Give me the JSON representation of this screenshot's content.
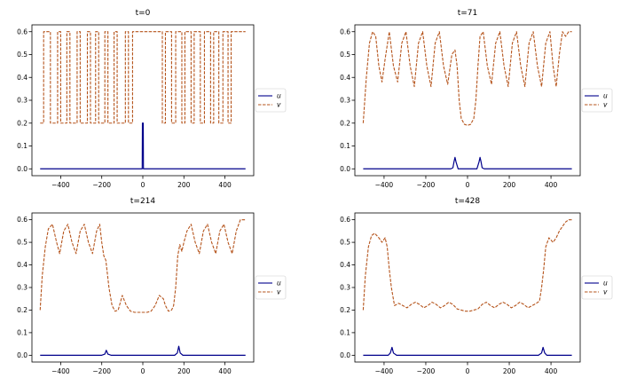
{
  "colors": {
    "u": "#00008b",
    "v": "#b5541c",
    "axis": "#000000"
  },
  "chart_data": [
    {
      "type": "line",
      "title": "t=0",
      "xlabel": "",
      "ylabel": "",
      "xlim": [
        -540,
        540
      ],
      "ylim": [
        -0.03,
        0.63
      ],
      "xticks": [
        -400,
        -200,
        0,
        200,
        400
      ],
      "yticks": [
        0.0,
        0.1,
        0.2,
        0.3,
        0.4,
        0.5,
        0.6
      ],
      "legend": {
        "placement": "right",
        "entries": [
          "u",
          "v"
        ]
      },
      "series": [
        {
          "name": "u",
          "style": "solid",
          "x": [
            -500,
            -3,
            -2,
            0,
            2,
            3,
            500
          ],
          "y": [
            0,
            0,
            0.2,
            0.2,
            0.2,
            0,
            0
          ]
        },
        {
          "name": "v",
          "style": "dashed",
          "x": [
            -500,
            -483,
            -483,
            -450,
            -450,
            -415,
            -415,
            -400,
            -400,
            -370,
            -370,
            -355,
            -355,
            -320,
            -320,
            -305,
            -305,
            -270,
            -270,
            -255,
            -255,
            -230,
            -230,
            -215,
            -215,
            -185,
            -185,
            -170,
            -170,
            -140,
            -140,
            -125,
            -125,
            -85,
            -85,
            -70,
            -70,
            -50,
            -50,
            95,
            95,
            110,
            110,
            140,
            140,
            160,
            160,
            190,
            190,
            205,
            205,
            235,
            235,
            250,
            250,
            280,
            280,
            300,
            300,
            330,
            330,
            345,
            345,
            370,
            370,
            390,
            390,
            415,
            415,
            430,
            430,
            500
          ],
          "y": [
            0.2,
            0.2,
            0.6,
            0.6,
            0.2,
            0.2,
            0.6,
            0.6,
            0.2,
            0.2,
            0.6,
            0.6,
            0.2,
            0.2,
            0.6,
            0.6,
            0.2,
            0.2,
            0.6,
            0.6,
            0.2,
            0.2,
            0.6,
            0.6,
            0.2,
            0.2,
            0.6,
            0.6,
            0.2,
            0.2,
            0.6,
            0.6,
            0.2,
            0.2,
            0.6,
            0.6,
            0.2,
            0.2,
            0.6,
            0.6,
            0.2,
            0.2,
            0.6,
            0.6,
            0.2,
            0.2,
            0.6,
            0.6,
            0.2,
            0.2,
            0.6,
            0.6,
            0.2,
            0.2,
            0.6,
            0.6,
            0.2,
            0.2,
            0.6,
            0.6,
            0.2,
            0.2,
            0.6,
            0.6,
            0.2,
            0.2,
            0.6,
            0.6,
            0.2,
            0.2,
            0.6,
            0.6
          ]
        }
      ]
    },
    {
      "type": "line",
      "title": "t=71",
      "xlabel": "",
      "ylabel": "",
      "xlim": [
        -540,
        540
      ],
      "ylim": [
        -0.03,
        0.63
      ],
      "xticks": [
        -400,
        -200,
        0,
        200,
        400
      ],
      "yticks": [
        0.0,
        0.1,
        0.2,
        0.3,
        0.4,
        0.5,
        0.6
      ],
      "legend": {
        "placement": "right",
        "entries": [
          "u",
          "v"
        ]
      },
      "series": [
        {
          "name": "u",
          "style": "solid",
          "x": [
            -500,
            -80,
            -70,
            -65,
            -60,
            -55,
            -45,
            45,
            55,
            60,
            65,
            70,
            80,
            500
          ],
          "y": [
            0,
            0,
            0.005,
            0.03,
            0.05,
            0.03,
            0,
            0,
            0.03,
            0.05,
            0.03,
            0.005,
            0,
            0
          ]
        },
        {
          "name": "v",
          "style": "dashed",
          "x": [
            -500,
            -485,
            -470,
            -455,
            -440,
            -425,
            -410,
            -395,
            -375,
            -355,
            -335,
            -315,
            -295,
            -275,
            -255,
            -235,
            -215,
            -195,
            -175,
            -155,
            -135,
            -115,
            -95,
            -75,
            -60,
            -50,
            -40,
            -30,
            -15,
            0,
            15,
            30,
            40,
            50,
            60,
            75,
            95,
            115,
            135,
            155,
            175,
            195,
            215,
            235,
            255,
            275,
            295,
            315,
            335,
            355,
            375,
            395,
            410,
            425,
            440,
            455,
            470,
            485,
            500
          ],
          "y": [
            0.2,
            0.4,
            0.55,
            0.6,
            0.58,
            0.45,
            0.38,
            0.48,
            0.6,
            0.45,
            0.38,
            0.55,
            0.6,
            0.45,
            0.36,
            0.55,
            0.6,
            0.45,
            0.36,
            0.55,
            0.6,
            0.45,
            0.37,
            0.5,
            0.52,
            0.45,
            0.3,
            0.22,
            0.195,
            0.19,
            0.195,
            0.22,
            0.3,
            0.45,
            0.58,
            0.6,
            0.45,
            0.37,
            0.55,
            0.6,
            0.45,
            0.36,
            0.55,
            0.6,
            0.45,
            0.36,
            0.55,
            0.6,
            0.45,
            0.36,
            0.55,
            0.6,
            0.45,
            0.36,
            0.5,
            0.6,
            0.58,
            0.6,
            0.6
          ]
        }
      ]
    },
    {
      "type": "line",
      "title": "t=214",
      "xlabel": "",
      "ylabel": "",
      "xlim": [
        -540,
        540
      ],
      "ylim": [
        -0.03,
        0.63
      ],
      "xticks": [
        -400,
        -200,
        0,
        200,
        400
      ],
      "yticks": [
        0.0,
        0.1,
        0.2,
        0.3,
        0.4,
        0.5,
        0.6
      ],
      "legend": {
        "placement": "right",
        "entries": [
          "u",
          "v"
        ]
      },
      "series": [
        {
          "name": "u",
          "style": "solid",
          "x": [
            -500,
            -200,
            -185,
            -178,
            -170,
            -155,
            155,
            168,
            175,
            182,
            195,
            500
          ],
          "y": [
            0,
            0,
            0.005,
            0.022,
            0.005,
            0,
            0,
            0.01,
            0.04,
            0.01,
            0,
            0
          ]
        },
        {
          "name": "v",
          "style": "dashed",
          "x": [
            -500,
            -490,
            -475,
            -460,
            -440,
            -420,
            -405,
            -385,
            -365,
            -345,
            -325,
            -305,
            -285,
            -265,
            -245,
            -225,
            -210,
            -200,
            -190,
            -180,
            -165,
            -150,
            -135,
            -120,
            -100,
            -80,
            -60,
            -40,
            -20,
            0,
            20,
            40,
            60,
            80,
            100,
            110,
            125,
            140,
            150,
            160,
            170,
            180,
            190,
            200,
            215,
            235,
            255,
            275,
            295,
            315,
            335,
            355,
            375,
            395,
            415,
            435,
            455,
            475,
            490,
            500
          ],
          "y": [
            0.2,
            0.35,
            0.48,
            0.56,
            0.58,
            0.5,
            0.45,
            0.55,
            0.58,
            0.5,
            0.45,
            0.55,
            0.58,
            0.5,
            0.45,
            0.55,
            0.58,
            0.5,
            0.44,
            0.42,
            0.3,
            0.22,
            0.195,
            0.2,
            0.265,
            0.22,
            0.195,
            0.19,
            0.19,
            0.19,
            0.19,
            0.195,
            0.22,
            0.265,
            0.25,
            0.22,
            0.195,
            0.2,
            0.22,
            0.3,
            0.44,
            0.49,
            0.46,
            0.5,
            0.55,
            0.58,
            0.5,
            0.45,
            0.55,
            0.58,
            0.5,
            0.45,
            0.55,
            0.58,
            0.5,
            0.45,
            0.55,
            0.6,
            0.6,
            0.6
          ]
        }
      ]
    },
    {
      "type": "line",
      "title": "t=428",
      "xlabel": "",
      "ylabel": "",
      "xlim": [
        -540,
        540
      ],
      "ylim": [
        -0.03,
        0.63
      ],
      "xticks": [
        -400,
        -200,
        0,
        200,
        400
      ],
      "yticks": [
        0.0,
        0.1,
        0.2,
        0.3,
        0.4,
        0.5,
        0.6
      ],
      "legend": {
        "placement": "right",
        "entries": [
          "u",
          "v"
        ]
      },
      "series": [
        {
          "name": "u",
          "style": "solid",
          "x": [
            -500,
            -380,
            -370,
            -362,
            -355,
            -340,
            340,
            355,
            362,
            370,
            380,
            500
          ],
          "y": [
            0,
            0,
            0.01,
            0.035,
            0.01,
            0,
            0,
            0.01,
            0.035,
            0.01,
            0,
            0
          ]
        },
        {
          "name": "v",
          "style": "dashed",
          "x": [
            -500,
            -490,
            -475,
            -460,
            -445,
            -425,
            -410,
            -395,
            -385,
            -375,
            -365,
            -350,
            -330,
            -310,
            -290,
            -270,
            -250,
            -230,
            -210,
            -190,
            -170,
            -150,
            -130,
            -110,
            -90,
            -70,
            -50,
            -30,
            -10,
            10,
            30,
            50,
            70,
            90,
            110,
            130,
            150,
            170,
            190,
            210,
            230,
            250,
            270,
            290,
            310,
            330,
            345,
            355,
            365,
            375,
            390,
            410,
            425,
            440,
            455,
            470,
            485,
            500
          ],
          "y": [
            0.2,
            0.35,
            0.48,
            0.53,
            0.54,
            0.52,
            0.5,
            0.52,
            0.48,
            0.38,
            0.3,
            0.22,
            0.23,
            0.22,
            0.21,
            0.225,
            0.235,
            0.225,
            0.21,
            0.22,
            0.235,
            0.225,
            0.21,
            0.22,
            0.235,
            0.225,
            0.205,
            0.2,
            0.195,
            0.195,
            0.2,
            0.205,
            0.225,
            0.235,
            0.22,
            0.21,
            0.225,
            0.235,
            0.225,
            0.21,
            0.22,
            0.235,
            0.225,
            0.21,
            0.22,
            0.23,
            0.24,
            0.3,
            0.38,
            0.48,
            0.52,
            0.5,
            0.52,
            0.55,
            0.57,
            0.59,
            0.6,
            0.6
          ]
        }
      ]
    }
  ]
}
